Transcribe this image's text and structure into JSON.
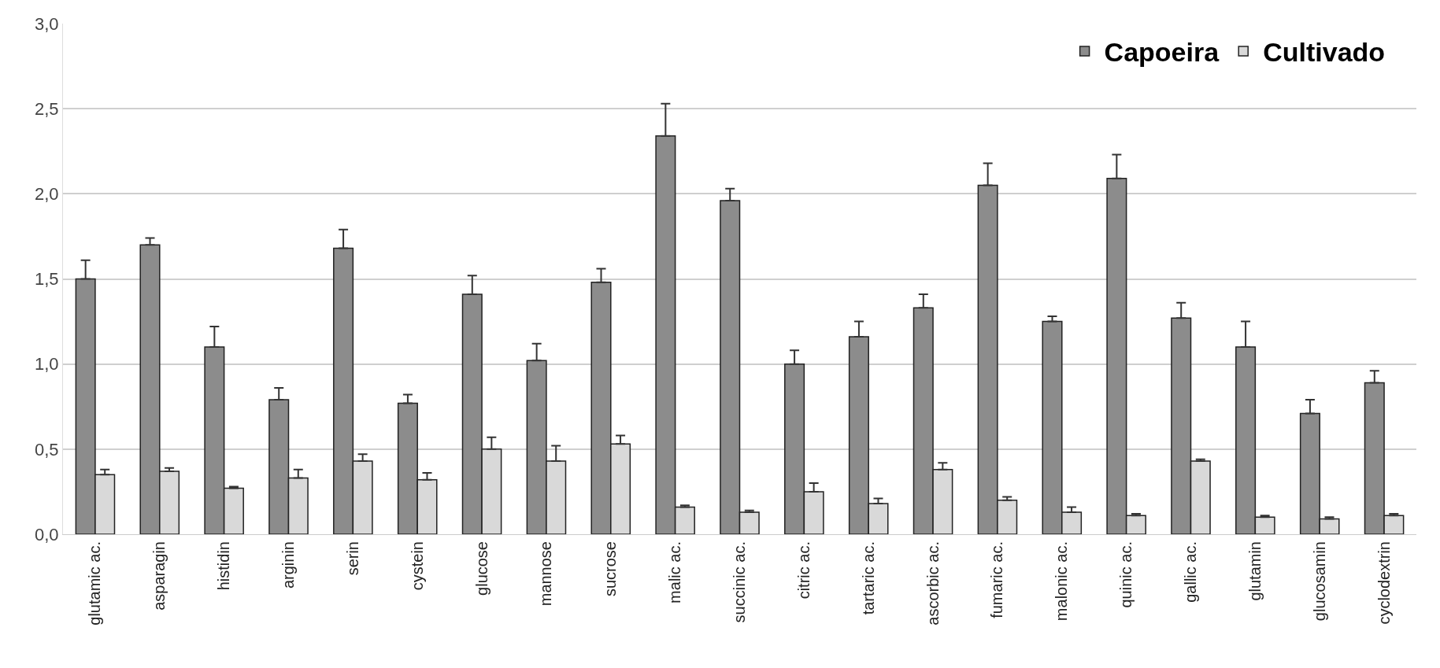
{
  "chart_data": {
    "type": "bar",
    "categories": [
      "glutamic ac.",
      "asparagin",
      "histidin",
      "arginin",
      "serin",
      "cystein",
      "glucose",
      "mannose",
      "sucrose",
      "malic ac.",
      "succinic ac.",
      "citric ac.",
      "tartaric ac.",
      "ascorbic ac.",
      "fumaric ac.",
      "malonic ac.",
      "quinic ac.",
      "gallic ac.",
      "glutamin",
      "glucosamin",
      "cyclodextrin"
    ],
    "series": [
      {
        "name": "Capoeira",
        "color": "#8c8c8c",
        "values": [
          1.5,
          1.7,
          1.1,
          0.79,
          1.68,
          0.77,
          1.41,
          1.02,
          1.48,
          2.34,
          1.96,
          1.0,
          1.16,
          1.33,
          2.05,
          1.25,
          2.09,
          1.27,
          1.1,
          0.71,
          0.89
        ],
        "errors": [
          [
            1.5,
            1.61
          ],
          [
            1.7,
            1.74
          ],
          [
            1.1,
            1.22
          ],
          [
            0.79,
            0.86
          ],
          [
            1.68,
            1.79
          ],
          [
            0.77,
            0.82
          ],
          [
            1.41,
            1.52
          ],
          [
            1.02,
            1.12
          ],
          [
            1.48,
            1.56
          ],
          [
            2.34,
            2.53
          ],
          [
            1.96,
            2.03
          ],
          [
            1.0,
            1.08
          ],
          [
            1.16,
            1.25
          ],
          [
            1.33,
            1.41
          ],
          [
            2.05,
            2.18
          ],
          [
            1.25,
            1.28
          ],
          [
            2.09,
            2.23
          ],
          [
            1.27,
            1.36
          ],
          [
            1.1,
            1.25
          ],
          [
            0.71,
            0.79
          ],
          [
            0.89,
            0.96
          ]
        ]
      },
      {
        "name": "Cultivado",
        "color": "#d9d9d9",
        "values": [
          0.35,
          0.37,
          0.27,
          0.33,
          0.43,
          0.32,
          0.5,
          0.43,
          0.53,
          0.16,
          0.13,
          0.25,
          0.18,
          0.38,
          0.2,
          0.13,
          0.11,
          0.43,
          0.1,
          0.09,
          0.11
        ],
        "errors": [
          [
            0.35,
            0.38
          ],
          [
            0.37,
            0.39
          ],
          [
            0.27,
            0.28
          ],
          [
            0.33,
            0.38
          ],
          [
            0.43,
            0.47
          ],
          [
            0.32,
            0.36
          ],
          [
            0.5,
            0.57
          ],
          [
            0.43,
            0.52
          ],
          [
            0.53,
            0.58
          ],
          [
            0.16,
            0.17
          ],
          [
            0.13,
            0.14
          ],
          [
            0.25,
            0.3
          ],
          [
            0.18,
            0.21
          ],
          [
            0.38,
            0.42
          ],
          [
            0.2,
            0.22
          ],
          [
            0.13,
            0.16
          ],
          [
            0.11,
            0.12
          ],
          [
            0.43,
            0.44
          ],
          [
            0.1,
            0.11
          ],
          [
            0.09,
            0.1
          ],
          [
            0.11,
            0.12
          ]
        ]
      }
    ],
    "ylim": [
      0,
      3
    ],
    "yticks": [
      {
        "value": 0,
        "label": "0,0"
      },
      {
        "value": 0.5,
        "label": "0,5"
      },
      {
        "value": 1,
        "label": "1,0"
      },
      {
        "value": 1.5,
        "label": "1,5"
      },
      {
        "value": 2,
        "label": "2,0"
      },
      {
        "value": 2.5,
        "label": "2,5"
      },
      {
        "value": 3,
        "label": "3,0"
      }
    ],
    "grid": "y",
    "legend": "top right"
  }
}
